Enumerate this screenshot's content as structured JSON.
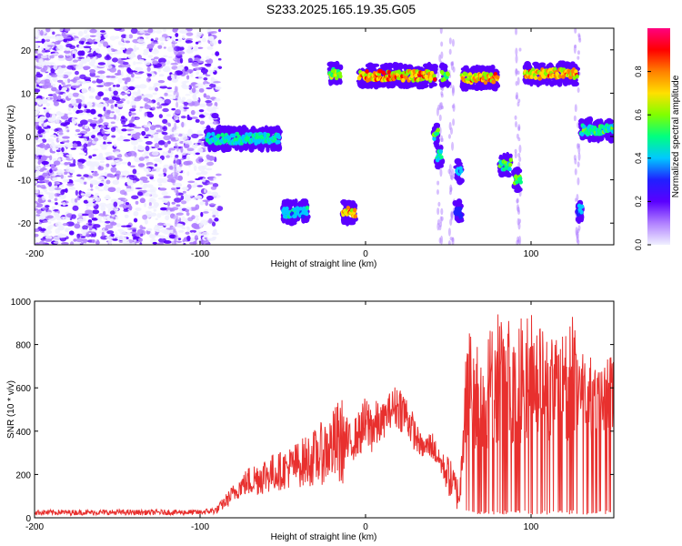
{
  "title": "S233.2025.165.19.35.G05",
  "colors": {
    "snr_line": "#e8302e",
    "specgram_scatter": "#6a1fe0",
    "axis": "#000000"
  },
  "chart_data": [
    {
      "type": "heatmap",
      "name": "spectrogram",
      "xlabel": "Height of straight line (km)",
      "ylabel": "Frequency (Hz)",
      "xlim": [
        -200,
        150
      ],
      "ylim": [
        -25,
        25
      ],
      "x_ticks": [
        -200,
        -100,
        0,
        100
      ],
      "x_tick_labels": [
        "-200",
        "-100",
        "0",
        "100"
      ],
      "y_ticks": [
        -20,
        -10,
        0,
        10,
        20
      ],
      "y_tick_labels": [
        "-20",
        "-10",
        "0",
        "10",
        "20"
      ],
      "colorbar": {
        "label": "Normalized spectral amplitude",
        "range": [
          0,
          1
        ],
        "ticks": [
          0.0,
          0.2,
          0.4,
          0.6,
          0.8
        ],
        "tick_labels": [
          "0.0",
          "0.2",
          "0.4",
          "0.6",
          "0.8"
        ],
        "colormap": [
          "#ffffff",
          "#f0f0ff",
          "#b080ff",
          "#5a00ff",
          "#2020ff",
          "#00c8ff",
          "#00ff80",
          "#80ff00",
          "#ffe000",
          "#ff8000",
          "#ff0000",
          "#ff0080"
        ]
      },
      "features": [
        {
          "x_start": -50,
          "x_end": -35,
          "freq_hz": -17.5,
          "peak_amp": 0.35
        },
        {
          "x_start": -14,
          "x_end": -6,
          "freq_hz": -17.5,
          "peak_amp": 0.85
        },
        {
          "x_start": -22,
          "x_end": -15,
          "freq_hz": 14.5,
          "peak_amp": 0.7
        },
        {
          "x_start": -4,
          "x_end": 42,
          "freq_hz": 14,
          "peak_amp": 0.9
        },
        {
          "x_start": 46,
          "x_end": 50,
          "freq_hz": 14,
          "peak_amp": 0.6
        },
        {
          "x_start": 58,
          "x_end": 80,
          "freq_hz": 13.5,
          "peak_amp": 0.85
        },
        {
          "x_start": 96,
          "x_end": 128,
          "freq_hz": 14.5,
          "peak_amp": 0.85
        },
        {
          "x_start": -96,
          "x_end": -52,
          "freq_hz": -0.5,
          "peak_amp": 0.4
        },
        {
          "x_start": 41,
          "x_end": 44,
          "freq_hz": 0.5,
          "peak_amp": 0.55
        },
        {
          "x_start": 43,
          "x_end": 46,
          "freq_hz": -4.5,
          "peak_amp": 0.4
        },
        {
          "x_start": 55,
          "x_end": 58,
          "freq_hz": -8,
          "peak_amp": 0.3
        },
        {
          "x_start": 81,
          "x_end": 88,
          "freq_hz": -6.5,
          "peak_amp": 0.5
        },
        {
          "x_start": 90,
          "x_end": 94,
          "freq_hz": -10,
          "peak_amp": 0.55
        },
        {
          "x_start": 54,
          "x_end": 58,
          "freq_hz": -17.5,
          "peak_amp": 0.2
        },
        {
          "x_start": 128,
          "x_end": 131,
          "freq_hz": -17,
          "peak_amp": 0.3
        },
        {
          "x_start": 130,
          "x_end": 150,
          "freq_hz": 1.5,
          "peak_amp": 0.5
        }
      ]
    },
    {
      "type": "line",
      "name": "snr",
      "xlabel": "Height of straight line (km)",
      "ylabel": "SNR (10 * v/v)",
      "xlim": [
        -200,
        150
      ],
      "ylim": [
        0,
        1000
      ],
      "x_ticks": [
        -200,
        -100,
        0,
        100
      ],
      "x_tick_labels": [
        "-200",
        "-100",
        "0",
        "100"
      ],
      "y_ticks": [
        0,
        200,
        400,
        600,
        800,
        1000
      ],
      "y_tick_labels": [
        "0",
        "200",
        "400",
        "600",
        "800",
        "1000"
      ],
      "envelope": {
        "x": [
          -200,
          -150,
          -100,
          -90,
          -80,
          -75,
          -70,
          -60,
          -50,
          -40,
          -30,
          -20,
          -15,
          -10,
          -5,
          0,
          5,
          10,
          15,
          20,
          25,
          30,
          35,
          40,
          45,
          50,
          55,
          57,
          60,
          65,
          70,
          80,
          90,
          100,
          110,
          120,
          125,
          130,
          140,
          150
        ],
        "base": [
          15,
          15,
          15,
          20,
          60,
          100,
          110,
          120,
          140,
          160,
          180,
          220,
          250,
          260,
          300,
          330,
          320,
          380,
          430,
          420,
          380,
          300,
          250,
          260,
          200,
          80,
          40,
          40,
          60,
          60,
          60,
          60,
          60,
          60,
          60,
          60,
          60,
          60,
          60,
          60
        ],
        "peak": [
          40,
          40,
          40,
          55,
          150,
          200,
          260,
          300,
          320,
          380,
          450,
          550,
          700,
          450,
          500,
          600,
          580,
          550,
          600,
          650,
          580,
          450,
          350,
          400,
          300,
          280,
          220,
          150,
          850,
          900,
          800,
          950,
          900,
          950,
          850,
          900,
          1000,
          800,
          700,
          750
        ],
        "mean": [
          25,
          25,
          25,
          35,
          110,
          150,
          170,
          200,
          220,
          250,
          280,
          330,
          350,
          340,
          380,
          430,
          420,
          440,
          500,
          520,
          470,
          380,
          320,
          340,
          260,
          200,
          120,
          100,
          500,
          520,
          480,
          560,
          540,
          560,
          520,
          540,
          600,
          520,
          480,
          500
        ]
      }
    }
  ]
}
